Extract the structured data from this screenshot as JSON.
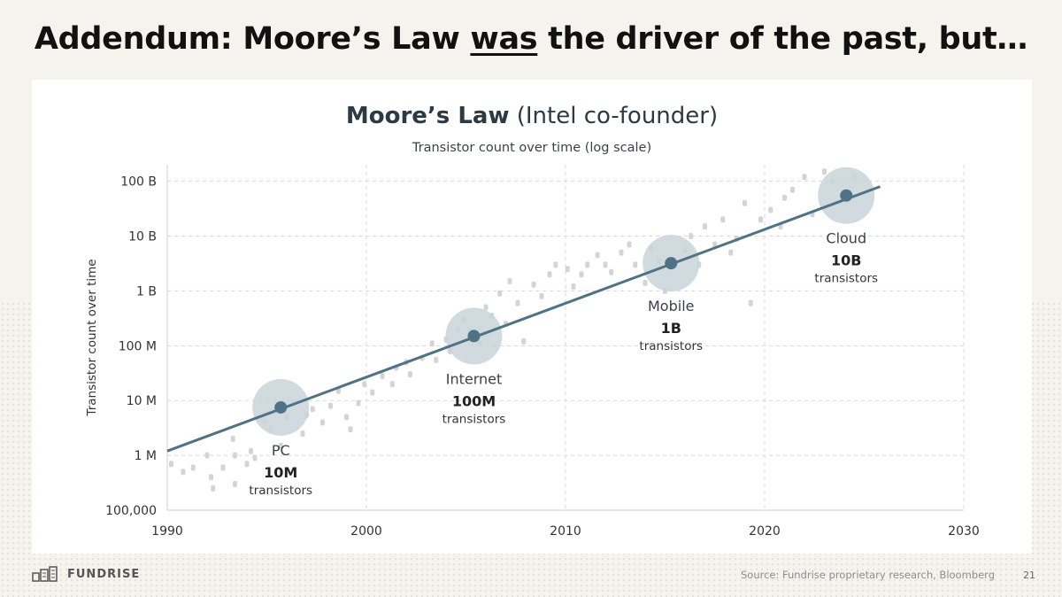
{
  "slide": {
    "title_prefix": "Addendum: Moore’s Law ",
    "title_emphasis": "was",
    "title_suffix": " the driver of the past, but…",
    "brand": "FUNDRISE",
    "source": "Source: Fundrise proprietary research, Bloomberg",
    "page_number": "21"
  },
  "colors": {
    "trend_line": "#4f7384",
    "milestone_dot": "#4f7384",
    "milestone_halo": "#c9d3d8",
    "scatter": "#d4d4d4",
    "grid": "#d8d8d8"
  },
  "chart_data": {
    "type": "line",
    "title_bold": "Moore’s Law",
    "title_rest": " (Intel co-founder)",
    "subtitle": "Transistor count over time (log scale)",
    "ylabel": "Transistor count over time",
    "xlabel": "",
    "xlim": [
      1990,
      2030
    ],
    "x_ticks": [
      1990,
      2000,
      2010,
      2020,
      2030
    ],
    "x_tick_labels": [
      "1990",
      "2000",
      "2010",
      "2020",
      "2030"
    ],
    "y_scale": "log",
    "ylim": [
      100000,
      200000000000
    ],
    "y_ticks": [
      100000,
      1000000,
      10000000,
      100000000,
      1000000000,
      10000000000,
      100000000000
    ],
    "y_tick_labels": [
      "100,000",
      "1 M",
      "10 M",
      "100 M",
      "1 B",
      "10 B",
      "100 B"
    ],
    "grid": true,
    "trend": {
      "x": [
        1990,
        2025.8
      ],
      "y": [
        1200000,
        80000000000
      ]
    },
    "milestones": [
      {
        "name": "PC",
        "value_label": "10M",
        "unit": "transistors",
        "x": 1995.7,
        "y": 7500000,
        "label_side": "below"
      },
      {
        "name": "Internet",
        "value_label": "100M",
        "unit": "transistors",
        "x": 2005.4,
        "y": 150000000,
        "label_side": "below"
      },
      {
        "name": "Mobile",
        "value_label": "1B",
        "unit": "transistors",
        "x": 2015.3,
        "y": 3200000000,
        "label_side": "below"
      },
      {
        "name": "Cloud",
        "value_label": "10B",
        "unit": "transistors",
        "x": 2024.1,
        "y": 55000000000,
        "label_side": "below"
      }
    ],
    "scatter_points": [
      [
        1990.2,
        700000
      ],
      [
        1990.8,
        500000
      ],
      [
        1991.3,
        600000
      ],
      [
        1992.0,
        1000000
      ],
      [
        1992.2,
        400000
      ],
      [
        1992.3,
        250000
      ],
      [
        1992.8,
        600000
      ],
      [
        1993.3,
        2000000
      ],
      [
        1993.4,
        1000000
      ],
      [
        1993.4,
        300000
      ],
      [
        1994.0,
        700000
      ],
      [
        1994.2,
        1200000
      ],
      [
        1994.4,
        900000
      ],
      [
        1994.9,
        4000000
      ],
      [
        1995.2,
        3000000
      ],
      [
        1995.7,
        1500000
      ],
      [
        1996.0,
        5000000
      ],
      [
        1996.3,
        9000000
      ],
      [
        1996.8,
        2500000
      ],
      [
        1997.0,
        5500000
      ],
      [
        1997.3,
        7000000
      ],
      [
        1997.8,
        4000000
      ],
      [
        1998.2,
        8000000
      ],
      [
        1998.6,
        15000000
      ],
      [
        1999.0,
        5000000
      ],
      [
        1999.2,
        3000000
      ],
      [
        1999.6,
        9000000
      ],
      [
        1999.9,
        20000000
      ],
      [
        2000.3,
        14000000
      ],
      [
        2000.8,
        28000000
      ],
      [
        2001.3,
        20000000
      ],
      [
        2001.5,
        40000000
      ],
      [
        2002.0,
        50000000
      ],
      [
        2002.2,
        30000000
      ],
      [
        2002.8,
        60000000
      ],
      [
        2003.3,
        110000000
      ],
      [
        2003.5,
        55000000
      ],
      [
        2004.0,
        130000000
      ],
      [
        2004.2,
        80000000
      ],
      [
        2004.6,
        200000000
      ],
      [
        2004.9,
        300000000
      ],
      [
        2005.2,
        180000000
      ],
      [
        2005.7,
        110000000
      ],
      [
        2006.0,
        500000000
      ],
      [
        2006.3,
        350000000
      ],
      [
        2006.7,
        900000000
      ],
      [
        2007.0,
        250000000
      ],
      [
        2007.2,
        1500000000
      ],
      [
        2007.6,
        600000000
      ],
      [
        2007.9,
        120000000
      ],
      [
        2008.4,
        1300000000
      ],
      [
        2008.8,
        800000000
      ],
      [
        2009.2,
        2000000000
      ],
      [
        2009.5,
        3000000000
      ],
      [
        2010.1,
        2500000000
      ],
      [
        2010.4,
        1200000000
      ],
      [
        2010.8,
        2000000000
      ],
      [
        2011.1,
        3000000000
      ],
      [
        2011.6,
        4500000000
      ],
      [
        2012.0,
        3000000000
      ],
      [
        2012.3,
        2200000000
      ],
      [
        2012.8,
        5000000000
      ],
      [
        2013.2,
        7000000000
      ],
      [
        2013.5,
        3000000000
      ],
      [
        2014.0,
        1400000000
      ],
      [
        2014.3,
        6000000000
      ],
      [
        2014.7,
        3500000000
      ],
      [
        2015.0,
        1000000000
      ],
      [
        2016.0,
        5500000000
      ],
      [
        2016.3,
        10000000000
      ],
      [
        2016.7,
        3000000000
      ],
      [
        2017.0,
        15000000000
      ],
      [
        2017.5,
        7000000000
      ],
      [
        2017.9,
        20000000000
      ],
      [
        2018.3,
        5000000000
      ],
      [
        2018.6,
        9000000000
      ],
      [
        2019.0,
        40000000000
      ],
      [
        2019.3,
        600000000
      ],
      [
        2019.8,
        20000000000
      ],
      [
        2020.3,
        30000000000
      ],
      [
        2020.8,
        15000000000
      ],
      [
        2021.0,
        50000000000
      ],
      [
        2021.4,
        70000000000
      ],
      [
        2022.0,
        120000000000
      ],
      [
        2022.4,
        25000000000
      ],
      [
        2023.0,
        150000000000
      ],
      [
        2023.4,
        100000000000
      ],
      [
        2024.5,
        120000000000
      ]
    ]
  }
}
